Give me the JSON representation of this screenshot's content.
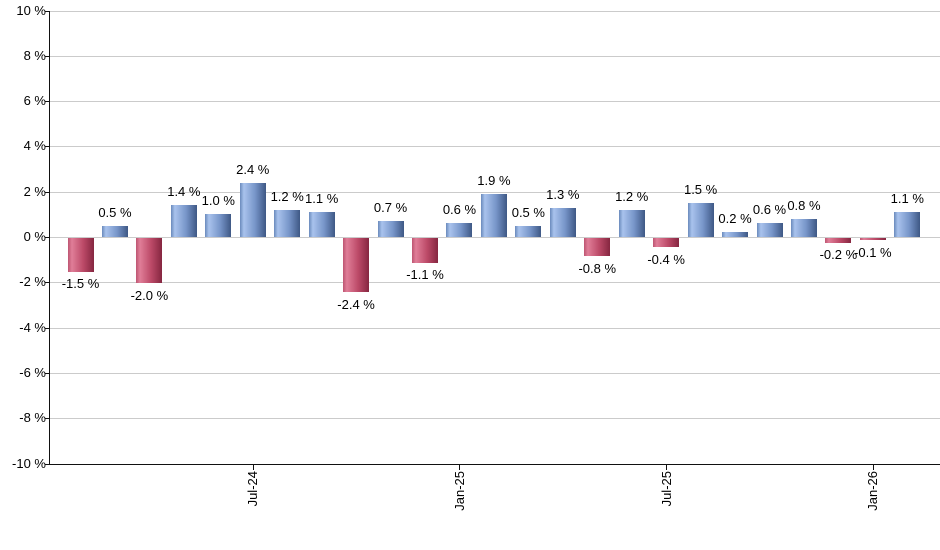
{
  "chart_data": {
    "type": "bar",
    "title": "",
    "xlabel": "",
    "ylabel": "",
    "ylim": [
      -10,
      10
    ],
    "ytick_step": 2,
    "grid": "horizontal",
    "legend": null,
    "value_suffix": " %",
    "values": [
      -1.5,
      0.5,
      -2.0,
      1.4,
      1.0,
      2.4,
      1.2,
      1.1,
      -2.4,
      0.7,
      -1.1,
      0.6,
      1.9,
      0.5,
      1.3,
      -0.8,
      1.2,
      -0.4,
      1.5,
      0.2,
      0.6,
      0.8,
      -0.2,
      -0.1,
      1.1
    ],
    "bar_labels": [
      "-1.5 %",
      "0.5 %",
      "-2.0 %",
      "1.4 %",
      "1.0 %",
      "2.4 %",
      "1.2 %",
      "1.1 %",
      "-2.4 %",
      "0.7 %",
      "-1.1 %",
      "0.6 %",
      "1.9 %",
      "0.5 %",
      "1.3 %",
      "-0.8 %",
      "1.2 %",
      "-0.4 %",
      "1.5 %",
      "0.2 %",
      "0.6 %",
      "0.8 %",
      "-0.2 %",
      "-0.1 %",
      "1.1 %"
    ],
    "y_tick_labels": [
      "10 %",
      "8 %",
      "6 %",
      "4 %",
      "2 %",
      "0 %",
      "-2 %",
      "-4 %",
      "-6 %",
      "-8 %",
      "-10 %"
    ],
    "x_ticks": [
      {
        "index": 5,
        "label": "Jul-24"
      },
      {
        "index": 11,
        "label": "Jan-25"
      },
      {
        "index": 17,
        "label": "Jul-25"
      },
      {
        "index": 23,
        "label": "Jan-26"
      }
    ],
    "colors": {
      "background": "#ffffff",
      "grid": "#cbcbcb",
      "axis": "#111111",
      "text": "#000000",
      "positive_edge": "#6a8abc",
      "positive_light": "#a9c3ed",
      "positive_mid": "#7795c9",
      "positive_dark": "#3e5885",
      "negative_edge": "#bd5572",
      "negative_light": "#e07e98",
      "negative_mid": "#bc4a68",
      "negative_dark": "#852640"
    }
  }
}
